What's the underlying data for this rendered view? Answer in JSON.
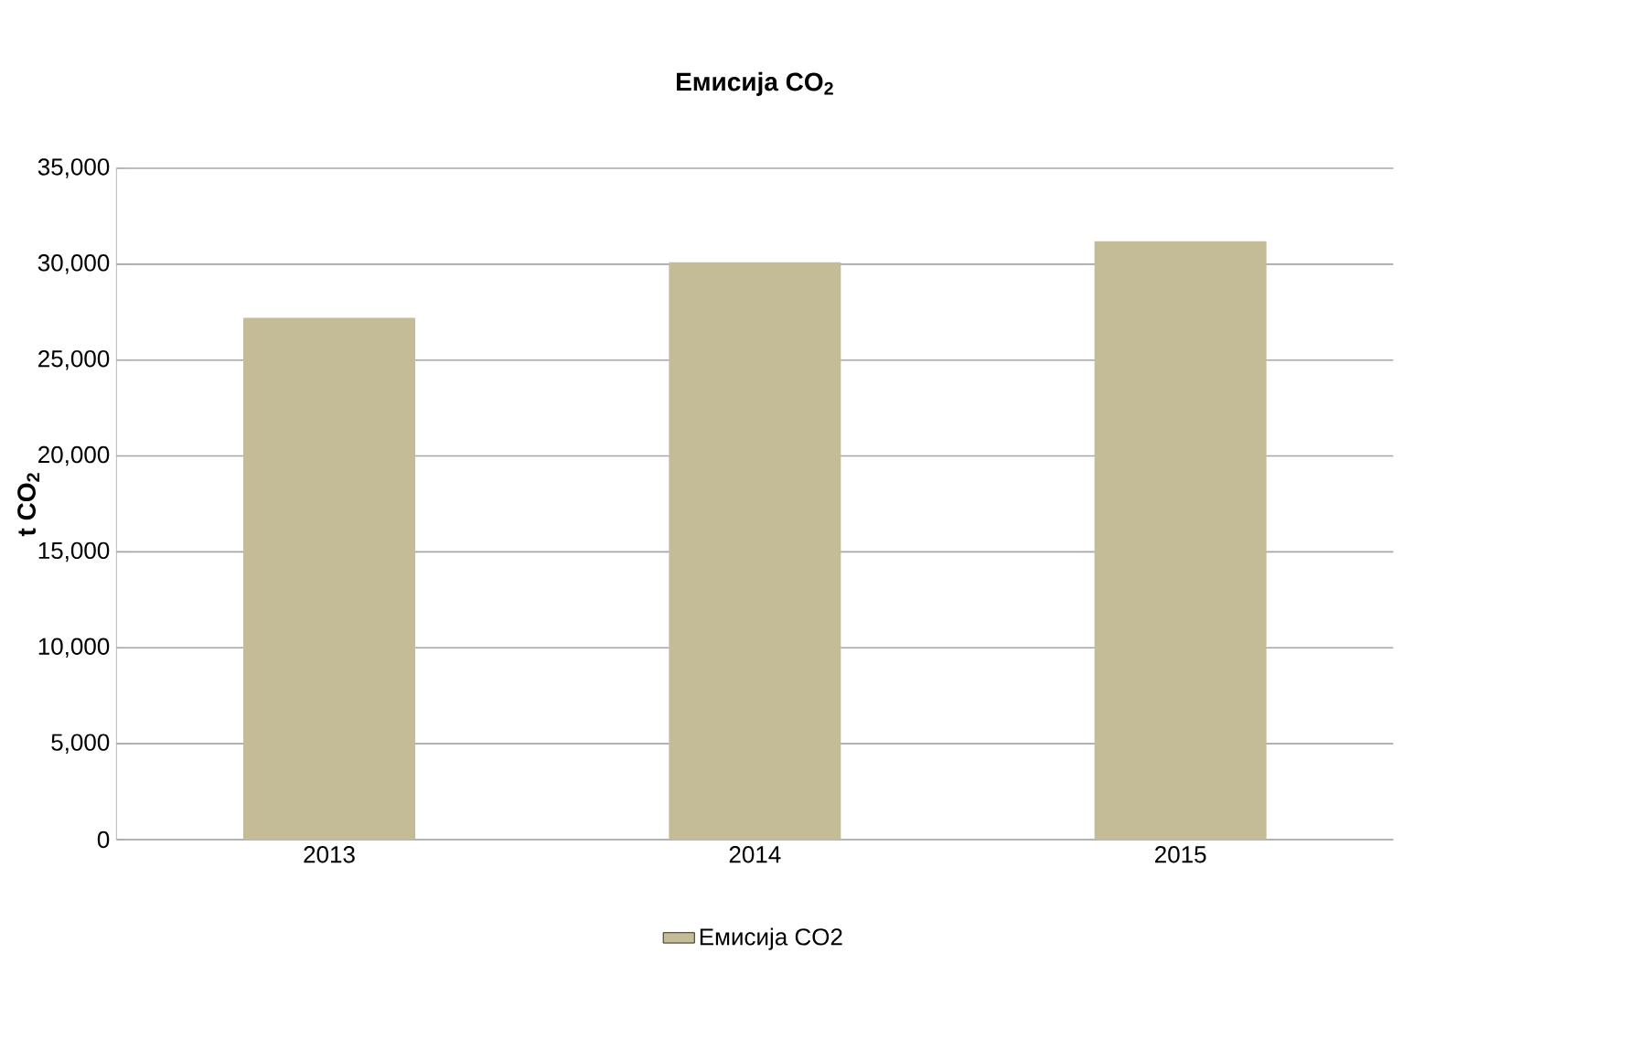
{
  "chart_data": {
    "type": "bar",
    "title": "Емисија CO$_{2}$",
    "ylabel": "t CO$_{2}$",
    "categories": [
      "2013",
      "2014",
      "2015"
    ],
    "series": [
      {
        "name": "Емисија CO2",
        "color": "#c4bc96",
        "values": [
          27200,
          30100,
          31200
        ]
      }
    ],
    "ylim": [
      0,
      35000
    ],
    "yticks": [
      0,
      {
        "value": 5000,
        "label": "5,000"
      },
      {
        "value": 10000,
        "label": "10,000"
      },
      {
        "value": 15000,
        "label": "15,000"
      },
      {
        "value": 20000,
        "label": "20,000"
      },
      {
        "value": 25000,
        "label": "25,000"
      },
      {
        "value": 30000,
        "label": "30,000"
      },
      {
        "value": 35000,
        "label": "35,000"
      }
    ],
    "grid": "y",
    "legend": "bottom"
  }
}
